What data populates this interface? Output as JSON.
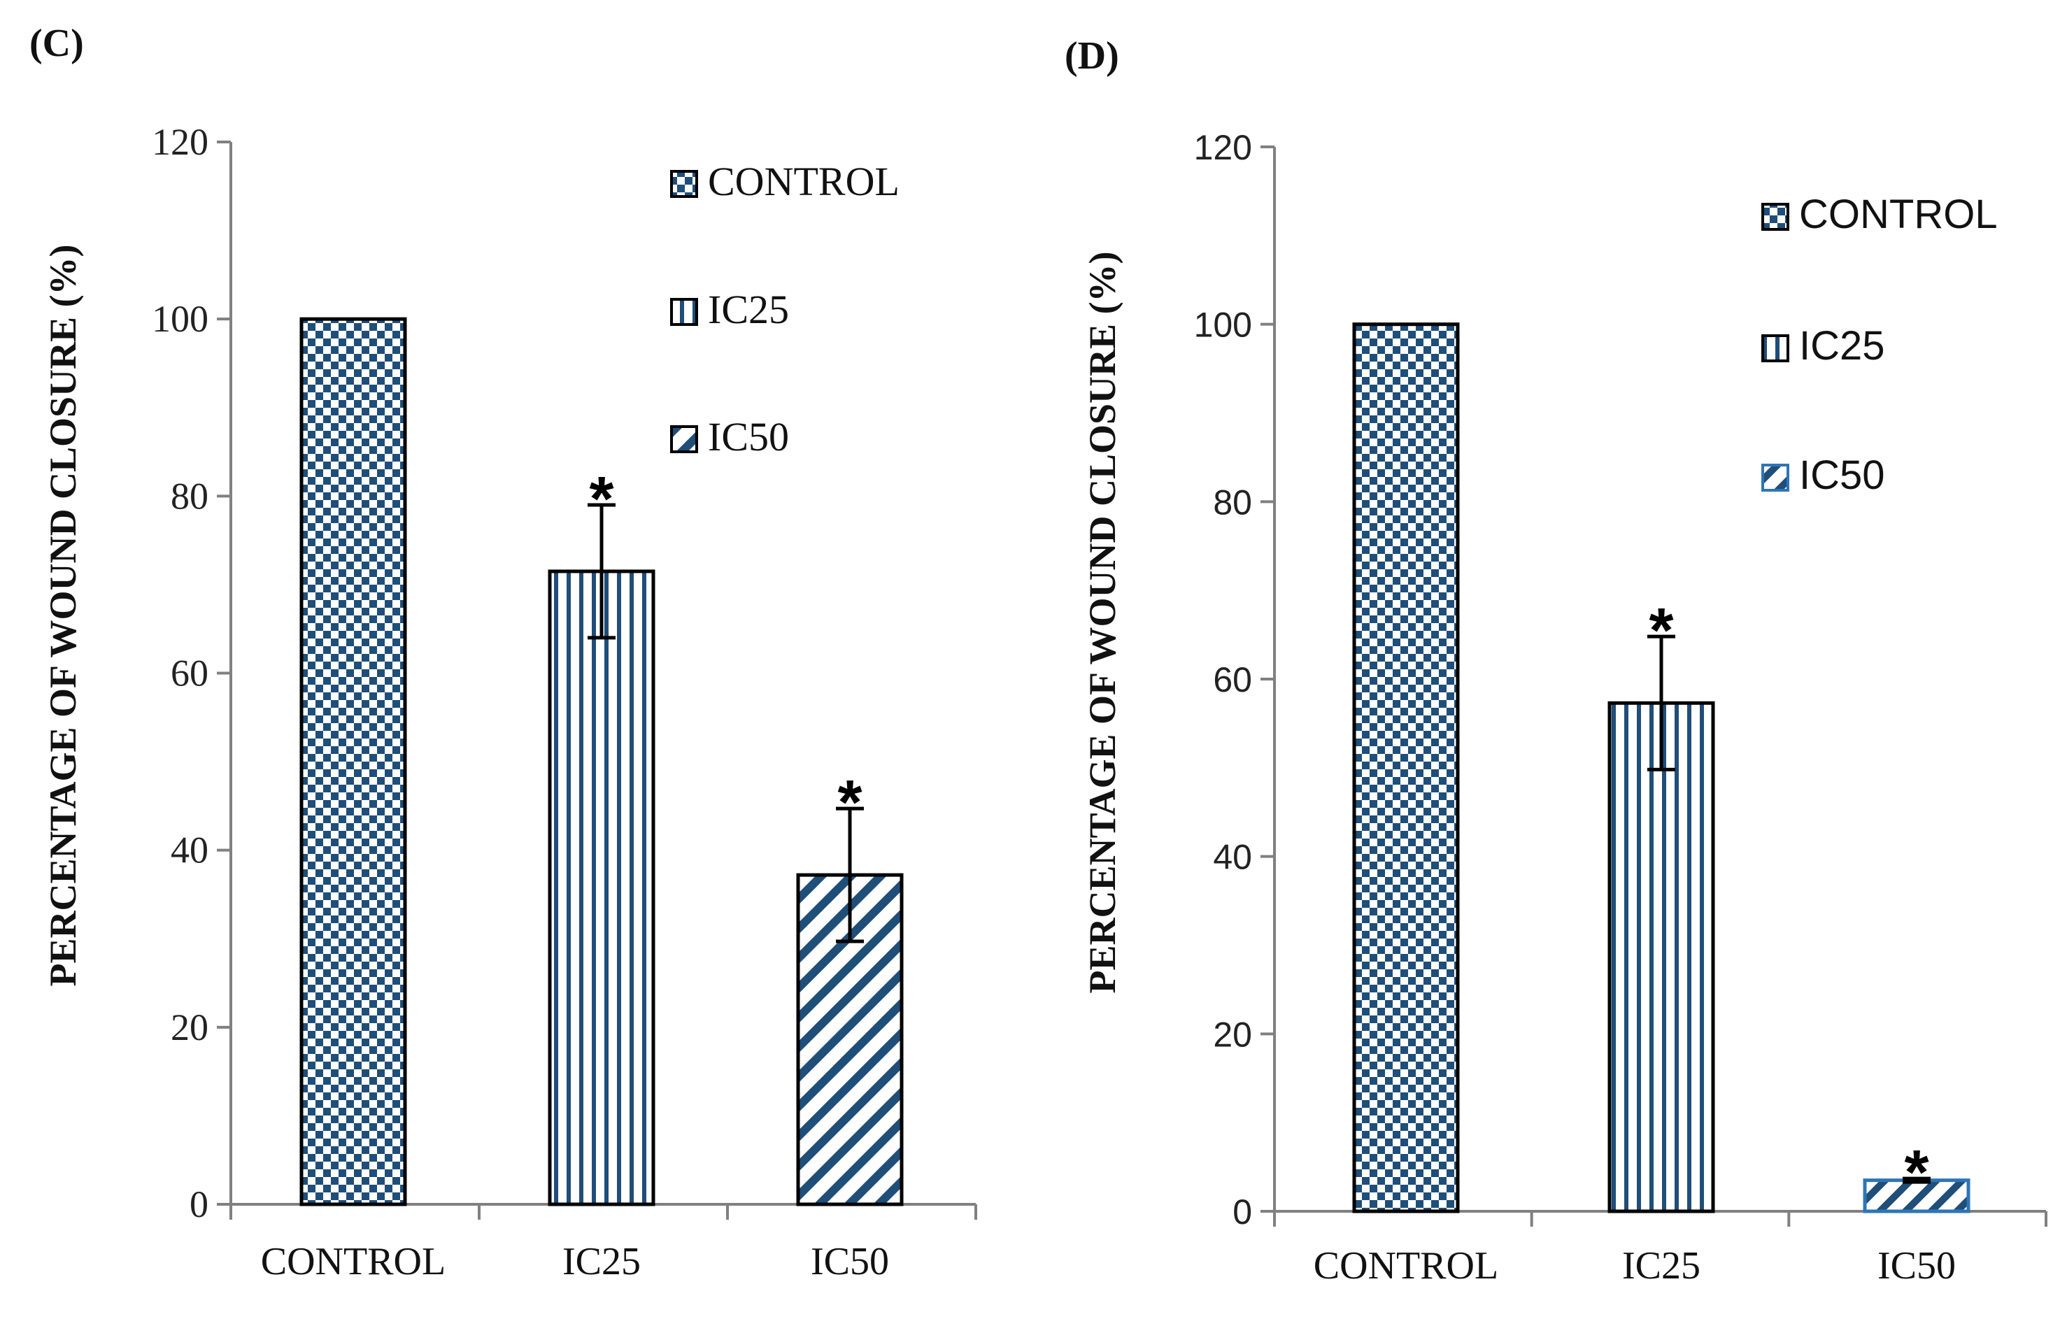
{
  "colors": {
    "blue": "#1f4e79",
    "light_blue": "#2e75b6",
    "black": "#000000"
  },
  "chart_data": [
    {
      "panel": "(C)",
      "type": "bar",
      "categories": [
        "CONTROL",
        "IC25",
        "IC50"
      ],
      "values": [
        100,
        71.5,
        37.2
      ],
      "error": [
        0,
        7.5,
        7.5
      ],
      "significance": [
        "",
        "*",
        "*"
      ],
      "patterns": [
        "checker",
        "vstripe",
        "diag"
      ],
      "ylabel": "PERCENTAGE OF WOUND CLOSURE (%)",
      "yticks": [
        "0",
        "20",
        "40",
        "60",
        "80",
        "100",
        "120"
      ],
      "ylim": [
        0,
        120
      ],
      "legend": [
        "CONTROL",
        "IC25",
        "IC50"
      ],
      "legend_position": "top-right"
    },
    {
      "panel": "(D)",
      "type": "bar",
      "categories": [
        "CONTROL",
        "IC25",
        "IC50"
      ],
      "values": [
        100,
        57.3,
        3.5
      ],
      "error": [
        0,
        7.5,
        0.2
      ],
      "significance": [
        "",
        "*",
        "*"
      ],
      "patterns": [
        "checker",
        "vstripe",
        "diag-light"
      ],
      "ylabel": "PERCENTAGE OF WOUND CLOSURE (%)",
      "yticks": [
        "0",
        "20",
        "40",
        "60",
        "80",
        "100",
        "120"
      ],
      "ylim": [
        0,
        120
      ],
      "legend": [
        "CONTROL",
        "IC25",
        "IC50"
      ],
      "legend_position": "top-right"
    }
  ]
}
